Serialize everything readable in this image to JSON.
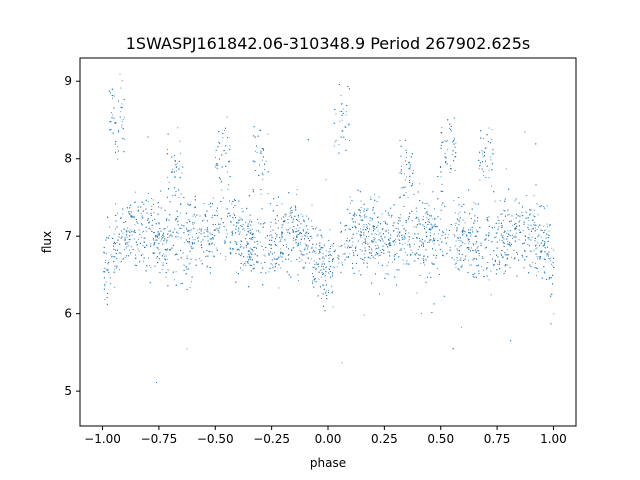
{
  "chart_data": {
    "type": "scatter",
    "title": "1SWASPJ161842.06-310348.9 Period 267902.625s",
    "xlabel": "phase",
    "ylabel": "flux",
    "xlim": [
      -1.1,
      1.1
    ],
    "ylim": [
      4.55,
      9.3
    ],
    "xticks": [
      -1.0,
      -0.75,
      -0.5,
      -0.25,
      0.0,
      0.25,
      0.5,
      0.75,
      1.0
    ],
    "xtick_labels": [
      "−1.00",
      "−0.75",
      "−0.50",
      "−0.25",
      "0.00",
      "0.25",
      "0.50",
      "0.75",
      "1.00"
    ],
    "yticks": [
      5,
      6,
      7,
      8,
      9
    ],
    "ytick_labels": [
      "5",
      "6",
      "7",
      "8",
      "9"
    ],
    "grid": false,
    "point_color": "#1f77b4",
    "series": [
      {
        "x_range": [
          -1.0,
          1.0
        ],
        "note_x": [
          -1.0,
          -0.95,
          -0.9,
          -0.85,
          -0.8,
          -0.75,
          -0.7,
          -0.65,
          -0.6,
          -0.55,
          -0.5,
          -0.45,
          -0.4,
          -0.35,
          -0.3,
          -0.25,
          -0.2,
          -0.15,
          -0.1,
          -0.05,
          0.0,
          0.05,
          0.1,
          0.15,
          0.2,
          0.25,
          0.3,
          0.35,
          0.4,
          0.45,
          0.5,
          0.55,
          0.6,
          0.65,
          0.7,
          0.75,
          0.8,
          0.85,
          0.9,
          0.95,
          1.0
        ],
        "median_y": [
          6.6,
          6.8,
          7.0,
          7.05,
          7.05,
          6.95,
          6.9,
          6.95,
          7.0,
          7.0,
          7.05,
          7.1,
          7.0,
          6.9,
          6.9,
          6.95,
          7.0,
          7.1,
          7.0,
          6.75,
          6.5,
          6.8,
          7.0,
          7.05,
          7.05,
          6.95,
          6.9,
          6.95,
          7.0,
          7.0,
          7.05,
          7.1,
          7.0,
          6.9,
          6.9,
          6.95,
          7.0,
          7.1,
          7.05,
          6.85,
          6.6
        ],
        "spread": 0.35,
        "excursions": [
          {
            "x": -0.94,
            "y": 8.5
          },
          {
            "x": -0.68,
            "y": 7.85
          },
          {
            "x": -0.47,
            "y": 8.1
          },
          {
            "x": -0.3,
            "y": 8.0
          },
          {
            "x": 0.06,
            "y": 8.5
          },
          {
            "x": 0.35,
            "y": 7.85
          },
          {
            "x": 0.53,
            "y": 8.1
          },
          {
            "x": 0.7,
            "y": 8.0
          }
        ]
      }
    ]
  }
}
